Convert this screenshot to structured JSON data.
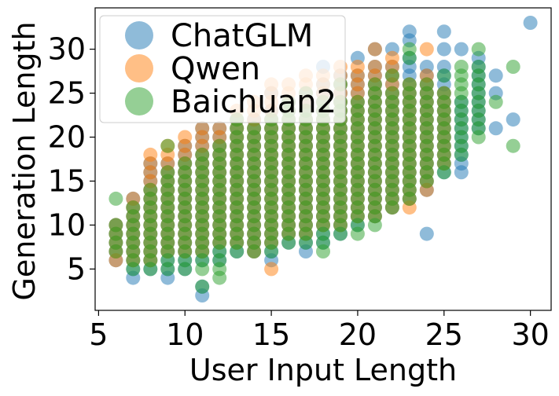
{
  "chart_data": {
    "type": "scatter",
    "title": "",
    "xlabel": "User Input Length",
    "ylabel": "Generation Length",
    "xlim": [
      4.8,
      31.2
    ],
    "ylim": [
      0.3,
      34.7
    ],
    "xticks": [
      5,
      10,
      15,
      20,
      25,
      30
    ],
    "yticks": [
      5,
      10,
      15,
      20,
      25,
      30
    ],
    "grid": false,
    "legend_position": "top-left",
    "series": [
      {
        "name": "ChatGLM",
        "color": "#1f77b4",
        "alpha": 0.5,
        "points": [
          [
            7,
            4
          ],
          [
            7,
            5
          ],
          [
            9,
            4
          ],
          [
            9,
            17
          ],
          [
            10,
            5
          ],
          [
            11,
            2
          ],
          [
            11,
            3
          ],
          [
            11,
            21
          ],
          [
            13,
            22
          ],
          [
            14,
            22
          ],
          [
            15,
            6
          ],
          [
            15,
            25
          ],
          [
            16,
            8
          ],
          [
            17,
            7
          ],
          [
            18,
            8
          ],
          [
            18,
            28
          ],
          [
            19,
            11
          ],
          [
            19,
            9
          ],
          [
            20,
            29
          ],
          [
            21,
            30
          ],
          [
            22,
            30
          ],
          [
            23,
            31
          ],
          [
            23,
            32
          ],
          [
            24,
            28
          ],
          [
            24,
            9
          ],
          [
            25,
            32
          ],
          [
            25,
            30
          ],
          [
            25,
            28
          ],
          [
            25,
            26
          ],
          [
            26,
            30
          ],
          [
            26,
            24
          ],
          [
            26,
            20
          ],
          [
            26,
            18
          ],
          [
            26,
            16
          ],
          [
            27,
            29
          ],
          [
            27,
            22
          ],
          [
            28,
            27
          ],
          [
            28,
            25
          ],
          [
            28,
            21
          ],
          [
            29,
            22
          ],
          [
            30,
            33
          ],
          [
            12,
            20
          ],
          [
            14,
            21
          ],
          [
            16,
            24
          ],
          [
            22,
            12
          ]
        ],
        "column_ranges": [
          [
            6,
            6,
            10
          ],
          [
            7,
            5,
            13
          ],
          [
            8,
            5,
            17
          ],
          [
            9,
            4,
            17
          ],
          [
            10,
            5,
            19
          ],
          [
            11,
            6,
            20
          ],
          [
            12,
            6,
            21
          ],
          [
            13,
            7,
            22
          ],
          [
            14,
            7,
            22
          ],
          [
            15,
            6,
            23
          ],
          [
            16,
            8,
            24
          ],
          [
            17,
            7,
            25
          ],
          [
            18,
            8,
            26
          ],
          [
            19,
            9,
            27
          ],
          [
            20,
            10,
            27
          ],
          [
            21,
            11,
            28
          ],
          [
            22,
            12,
            28
          ],
          [
            23,
            13,
            29
          ],
          [
            24,
            14,
            28
          ],
          [
            25,
            16,
            27
          ],
          [
            26,
            16,
            24
          ],
          [
            27,
            21,
            29
          ]
        ]
      },
      {
        "name": "Qwen",
        "color": "#ff7f0e",
        "alpha": 0.5,
        "points": [
          [
            6,
            6
          ],
          [
            6,
            7
          ],
          [
            6,
            8
          ],
          [
            6,
            9
          ],
          [
            6,
            10
          ],
          [
            7,
            11
          ],
          [
            8,
            17
          ],
          [
            8,
            18
          ],
          [
            9,
            19
          ],
          [
            9,
            13
          ],
          [
            10,
            20
          ],
          [
            10,
            19
          ],
          [
            11,
            21
          ],
          [
            12,
            20
          ],
          [
            13,
            23
          ],
          [
            14,
            24
          ],
          [
            14,
            7
          ],
          [
            15,
            5
          ],
          [
            15,
            26
          ],
          [
            16,
            26
          ],
          [
            17,
            27
          ],
          [
            18,
            27
          ],
          [
            19,
            28
          ],
          [
            20,
            27
          ],
          [
            20,
            11
          ],
          [
            21,
            30
          ],
          [
            21,
            28
          ],
          [
            21,
            11
          ],
          [
            22,
            29
          ],
          [
            23,
            26
          ],
          [
            24,
            30
          ],
          [
            24,
            14
          ],
          [
            25,
            17
          ],
          [
            25,
            23
          ]
        ],
        "column_ranges": [
          [
            6,
            6,
            10
          ],
          [
            7,
            6,
            13
          ],
          [
            8,
            6,
            17
          ],
          [
            9,
            7,
            18
          ],
          [
            10,
            7,
            19
          ],
          [
            11,
            7,
            20
          ],
          [
            12,
            8,
            21
          ],
          [
            13,
            8,
            23
          ],
          [
            14,
            7,
            24
          ],
          [
            15,
            8,
            25
          ],
          [
            16,
            9,
            26
          ],
          [
            17,
            9,
            27
          ],
          [
            18,
            10,
            27
          ],
          [
            19,
            10,
            28
          ],
          [
            20,
            11,
            28
          ],
          [
            21,
            11,
            28
          ],
          [
            22,
            12,
            29
          ],
          [
            23,
            12,
            26
          ],
          [
            24,
            14,
            27
          ],
          [
            25,
            17,
            25
          ]
        ]
      },
      {
        "name": "Baichuan2",
        "color": "#2ca02c",
        "alpha": 0.5,
        "points": [
          [
            6,
            13
          ],
          [
            7,
            12
          ],
          [
            9,
            19
          ],
          [
            11,
            3
          ],
          [
            12,
            4
          ],
          [
            13,
            22
          ],
          [
            16,
            24
          ],
          [
            17,
            25
          ],
          [
            19,
            26
          ],
          [
            21,
            26
          ],
          [
            22,
            27
          ],
          [
            23,
            29
          ],
          [
            23,
            30
          ],
          [
            24,
            26
          ],
          [
            25,
            27
          ],
          [
            26,
            27
          ],
          [
            26,
            28
          ],
          [
            26,
            19
          ],
          [
            27,
            30
          ],
          [
            27,
            28
          ],
          [
            27,
            20
          ],
          [
            28,
            24
          ],
          [
            29,
            28
          ],
          [
            29,
            19
          ],
          [
            15,
            7
          ],
          [
            18,
            7
          ],
          [
            20,
            9
          ]
        ],
        "column_ranges": [
          [
            6,
            7,
            10
          ],
          [
            7,
            5,
            12
          ],
          [
            8,
            5,
            14
          ],
          [
            9,
            5,
            16
          ],
          [
            10,
            5,
            17
          ],
          [
            11,
            5,
            18
          ],
          [
            12,
            5,
            19
          ],
          [
            13,
            7,
            21
          ],
          [
            14,
            7,
            21
          ],
          [
            15,
            7,
            22
          ],
          [
            16,
            8,
            23
          ],
          [
            17,
            8,
            23
          ],
          [
            18,
            8,
            24
          ],
          [
            19,
            9,
            24
          ],
          [
            20,
            9,
            24
          ],
          [
            21,
            10,
            25
          ],
          [
            22,
            12,
            25
          ],
          [
            23,
            13,
            26
          ],
          [
            24,
            15,
            25
          ],
          [
            25,
            16,
            25
          ],
          [
            26,
            18,
            26
          ],
          [
            27,
            20,
            27
          ]
        ]
      }
    ]
  }
}
